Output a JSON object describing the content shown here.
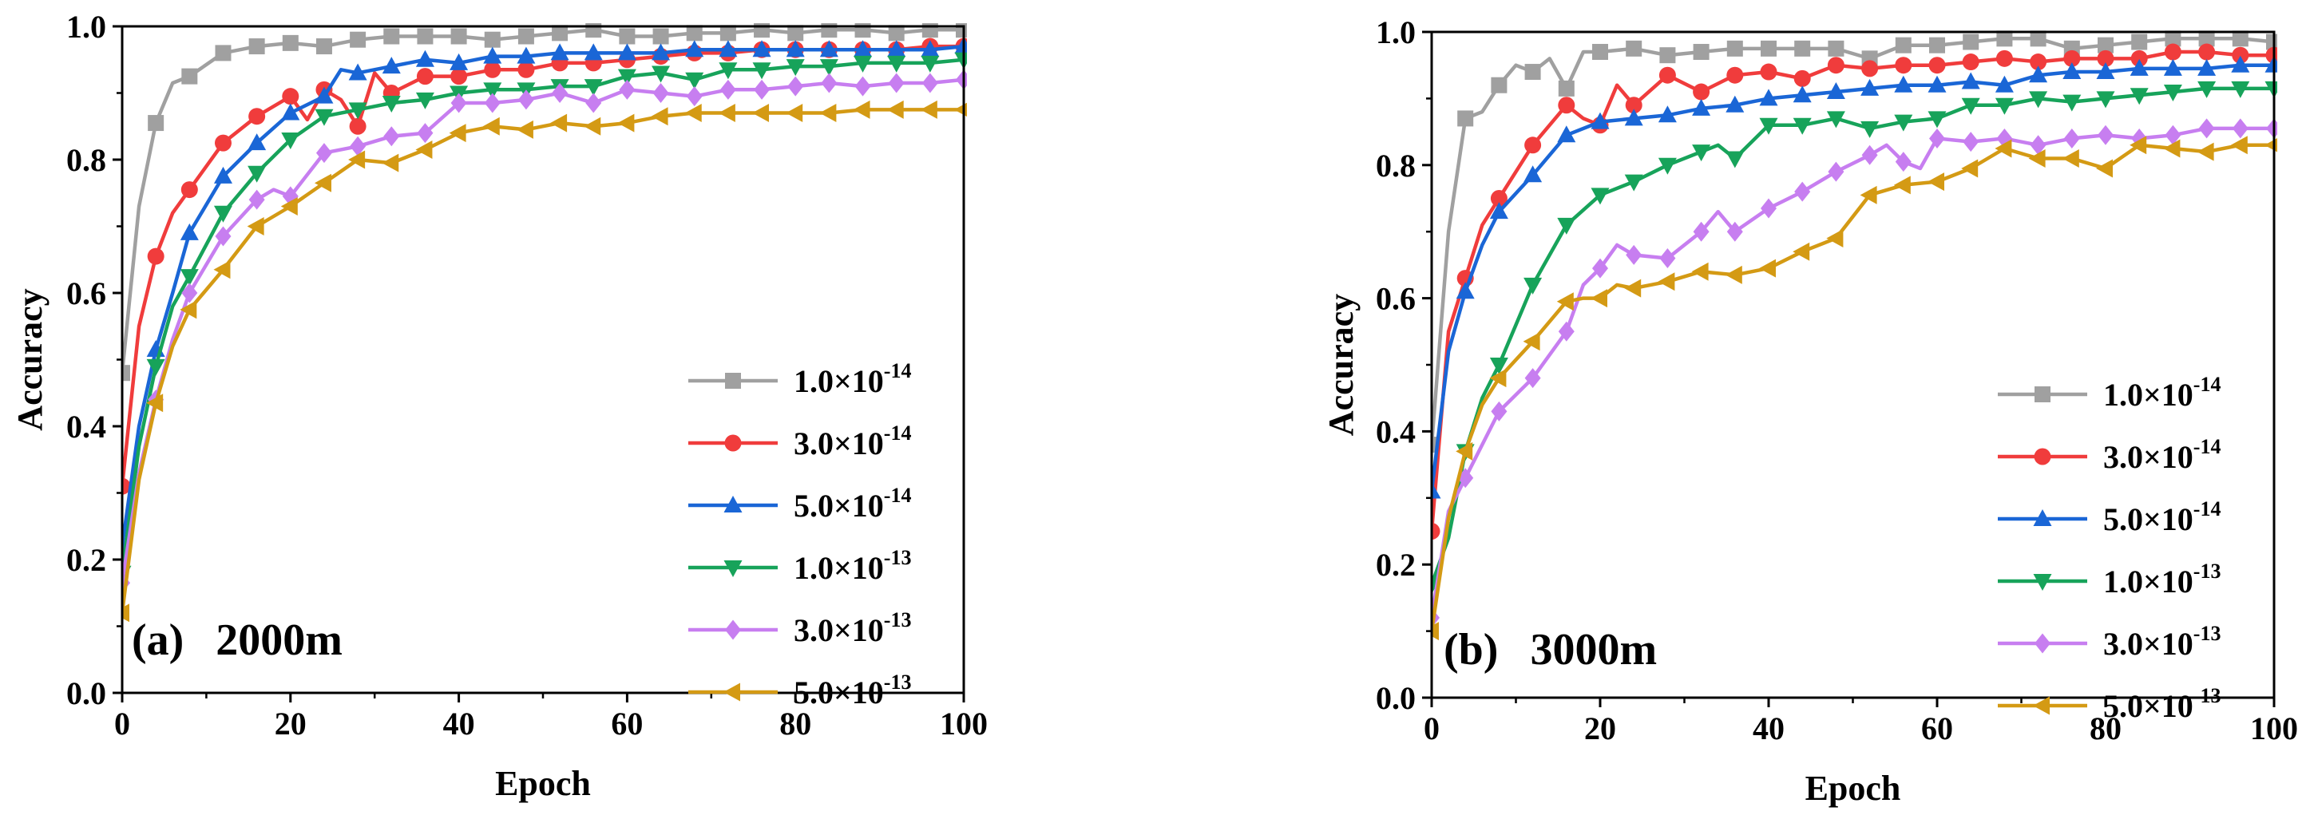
{
  "chart_data": [
    {
      "type": "line",
      "panel": "(a)",
      "title": "2000m",
      "xlabel": "Epoch",
      "ylabel": "Accuracy",
      "xlim": [
        0,
        100
      ],
      "ylim": [
        0,
        1.0
      ],
      "xticks": [
        "0",
        "20",
        "40",
        "60",
        "80",
        "100"
      ],
      "yticks": [
        "0.0",
        "0.2",
        "0.4",
        "0.6",
        "0.8",
        "1.0"
      ],
      "legend_position": "center-right",
      "series": [
        {
          "name_mantissa": "1.0×10",
          "name_exp": "-14",
          "color": "#a0a0a0",
          "marker": "square",
          "x": [
            0,
            2,
            4,
            6,
            8,
            12,
            16,
            20,
            24,
            28,
            32,
            36,
            40,
            44,
            48,
            52,
            56,
            60,
            64,
            68,
            72,
            76,
            80,
            84,
            88,
            92,
            96,
            100
          ],
          "y": [
            0.48,
            0.73,
            0.855,
            0.915,
            0.925,
            0.96,
            0.97,
            0.975,
            0.97,
            0.98,
            0.985,
            0.985,
            0.985,
            0.98,
            0.985,
            0.99,
            0.995,
            0.985,
            0.985,
            0.99,
            0.99,
            0.995,
            0.99,
            0.995,
            0.995,
            0.99,
            0.995,
            0.995
          ]
        },
        {
          "name_mantissa": "3.0×10",
          "name_exp": "-14",
          "color": "#f03c3c",
          "marker": "circle",
          "x": [
            0,
            2,
            4,
            6,
            8,
            12,
            16,
            20,
            22,
            24,
            26,
            28,
            30,
            32,
            36,
            40,
            44,
            48,
            52,
            56,
            60,
            64,
            68,
            72,
            76,
            80,
            84,
            88,
            92,
            96,
            100
          ],
          "y": [
            0.31,
            0.55,
            0.655,
            0.72,
            0.755,
            0.825,
            0.865,
            0.895,
            0.86,
            0.905,
            0.89,
            0.85,
            0.93,
            0.9,
            0.925,
            0.925,
            0.935,
            0.935,
            0.945,
            0.945,
            0.95,
            0.955,
            0.96,
            0.96,
            0.965,
            0.965,
            0.965,
            0.965,
            0.965,
            0.97,
            0.97
          ]
        },
        {
          "name_mantissa": "5.0×10",
          "name_exp": "-14",
          "color": "#1a66d6",
          "marker": "triangle-up",
          "x": [
            0,
            2,
            4,
            6,
            8,
            12,
            16,
            20,
            24,
            26,
            28,
            32,
            36,
            40,
            44,
            48,
            52,
            56,
            60,
            64,
            68,
            72,
            76,
            80,
            84,
            88,
            92,
            96,
            100
          ],
          "y": [
            0.22,
            0.4,
            0.515,
            0.6,
            0.69,
            0.775,
            0.825,
            0.87,
            0.895,
            0.935,
            0.93,
            0.94,
            0.95,
            0.945,
            0.955,
            0.955,
            0.96,
            0.96,
            0.96,
            0.96,
            0.965,
            0.965,
            0.965,
            0.965,
            0.965,
            0.965,
            0.965,
            0.965,
            0.97
          ]
        },
        {
          "name_mantissa": "1.0×10",
          "name_exp": "-13",
          "color": "#17a35a",
          "marker": "triangle-down",
          "x": [
            0,
            2,
            4,
            6,
            8,
            12,
            16,
            20,
            24,
            28,
            32,
            36,
            40,
            44,
            48,
            52,
            56,
            60,
            64,
            68,
            72,
            76,
            80,
            84,
            88,
            92,
            96,
            100
          ],
          "y": [
            0.18,
            0.37,
            0.49,
            0.58,
            0.625,
            0.72,
            0.78,
            0.83,
            0.865,
            0.875,
            0.885,
            0.89,
            0.9,
            0.905,
            0.905,
            0.91,
            0.91,
            0.925,
            0.93,
            0.92,
            0.935,
            0.935,
            0.94,
            0.94,
            0.945,
            0.945,
            0.945,
            0.95
          ]
        },
        {
          "name_mantissa": "3.0×10",
          "name_exp": "-13",
          "color": "#c77ef0",
          "marker": "diamond",
          "x": [
            0,
            2,
            4,
            6,
            8,
            12,
            16,
            18,
            20,
            24,
            28,
            32,
            36,
            40,
            44,
            48,
            52,
            56,
            60,
            64,
            68,
            72,
            76,
            80,
            84,
            88,
            92,
            96,
            100
          ],
          "y": [
            0.165,
            0.33,
            0.44,
            0.53,
            0.6,
            0.685,
            0.74,
            0.755,
            0.745,
            0.81,
            0.82,
            0.835,
            0.84,
            0.885,
            0.885,
            0.89,
            0.9,
            0.885,
            0.905,
            0.9,
            0.895,
            0.905,
            0.905,
            0.91,
            0.915,
            0.91,
            0.915,
            0.915,
            0.92
          ]
        },
        {
          "name_mantissa": "5.0×10",
          "name_exp": "-13",
          "color": "#d49a14",
          "marker": "triangle-left",
          "x": [
            0,
            2,
            4,
            6,
            8,
            12,
            16,
            20,
            24,
            28,
            32,
            36,
            40,
            44,
            48,
            52,
            56,
            60,
            64,
            68,
            72,
            76,
            80,
            84,
            88,
            92,
            96,
            100
          ],
          "y": [
            0.12,
            0.32,
            0.435,
            0.52,
            0.575,
            0.635,
            0.7,
            0.73,
            0.765,
            0.8,
            0.795,
            0.815,
            0.84,
            0.85,
            0.845,
            0.855,
            0.85,
            0.855,
            0.865,
            0.87,
            0.87,
            0.87,
            0.87,
            0.87,
            0.875,
            0.875,
            0.875,
            0.875
          ]
        }
      ]
    },
    {
      "type": "line",
      "panel": "(b)",
      "title": "3000m",
      "xlabel": "Epoch",
      "ylabel": "Accuracy",
      "xlim": [
        0,
        100
      ],
      "ylim": [
        0,
        1.0
      ],
      "xticks": [
        "0",
        "20",
        "40",
        "60",
        "80",
        "100"
      ],
      "yticks": [
        "0.0",
        "0.2",
        "0.4",
        "0.6",
        "0.8",
        "1.0"
      ],
      "legend_position": "center-right",
      "series": [
        {
          "name_mantissa": "1.0×10",
          "name_exp": "-14",
          "color": "#a0a0a0",
          "marker": "square",
          "x": [
            0,
            2,
            4,
            6,
            8,
            10,
            12,
            14,
            16,
            18,
            20,
            24,
            28,
            32,
            36,
            40,
            44,
            48,
            52,
            56,
            60,
            64,
            68,
            72,
            76,
            80,
            84,
            88,
            92,
            96,
            100
          ],
          "y": [
            0.38,
            0.7,
            0.87,
            0.88,
            0.92,
            0.95,
            0.94,
            0.96,
            0.915,
            0.97,
            0.97,
            0.975,
            0.965,
            0.97,
            0.975,
            0.975,
            0.975,
            0.975,
            0.96,
            0.98,
            0.98,
            0.985,
            0.99,
            0.99,
            0.975,
            0.98,
            0.985,
            0.99,
            0.99,
            0.99,
            0.985
          ]
        },
        {
          "name_mantissa": "3.0×10",
          "name_exp": "-14",
          "color": "#f03c3c",
          "marker": "circle",
          "x": [
            0,
            2,
            4,
            6,
            8,
            12,
            16,
            18,
            20,
            22,
            24,
            28,
            32,
            36,
            40,
            44,
            48,
            52,
            56,
            60,
            64,
            68,
            72,
            76,
            80,
            84,
            88,
            92,
            96,
            100
          ],
          "y": [
            0.25,
            0.55,
            0.63,
            0.71,
            0.75,
            0.83,
            0.89,
            0.87,
            0.86,
            0.92,
            0.89,
            0.935,
            0.91,
            0.935,
            0.94,
            0.93,
            0.95,
            0.945,
            0.95,
            0.95,
            0.955,
            0.96,
            0.955,
            0.96,
            0.96,
            0.96,
            0.97,
            0.97,
            0.965,
            0.965
          ]
        },
        {
          "name_mantissa": "5.0×10",
          "name_exp": "-14",
          "color": "#1a66d6",
          "marker": "triangle-up",
          "x": [
            0,
            2,
            4,
            6,
            8,
            12,
            16,
            20,
            24,
            28,
            32,
            36,
            40,
            44,
            48,
            52,
            56,
            60,
            64,
            68,
            72,
            76,
            80,
            84,
            88,
            92,
            96,
            100
          ],
          "y": [
            0.31,
            0.52,
            0.61,
            0.68,
            0.73,
            0.785,
            0.845,
            0.865,
            0.87,
            0.875,
            0.885,
            0.89,
            0.9,
            0.905,
            0.91,
            0.915,
            0.92,
            0.92,
            0.925,
            0.92,
            0.935,
            0.94,
            0.94,
            0.945,
            0.945,
            0.945,
            0.95,
            0.95
          ]
        },
        {
          "name_mantissa": "1.0×10",
          "name_exp": "-13",
          "color": "#17a35a",
          "marker": "triangle-down",
          "x": [
            0,
            2,
            4,
            6,
            8,
            12,
            16,
            20,
            24,
            28,
            32,
            34,
            36,
            40,
            42,
            44,
            48,
            52,
            56,
            60,
            64,
            68,
            72,
            76,
            80,
            84,
            88,
            92,
            96,
            100
          ],
          "y": [
            0.17,
            0.24,
            0.37,
            0.45,
            0.5,
            0.62,
            0.71,
            0.755,
            0.775,
            0.8,
            0.82,
            0.83,
            0.81,
            0.86,
            0.86,
            0.86,
            0.87,
            0.855,
            0.865,
            0.87,
            0.89,
            0.89,
            0.9,
            0.895,
            0.9,
            0.905,
            0.91,
            0.915,
            0.915,
            0.915
          ]
        },
        {
          "name_mantissa": "3.0×10",
          "name_exp": "-13",
          "color": "#c77ef0",
          "marker": "diamond",
          "x": [
            0,
            2,
            4,
            6,
            8,
            12,
            16,
            18,
            20,
            22,
            24,
            28,
            32,
            34,
            36,
            40,
            44,
            48,
            52,
            54,
            56,
            58,
            60,
            64,
            68,
            72,
            76,
            80,
            84,
            88,
            92,
            96,
            100
          ],
          "y": [
            0.12,
            0.28,
            0.33,
            0.38,
            0.43,
            0.48,
            0.55,
            0.62,
            0.645,
            0.68,
            0.665,
            0.66,
            0.7,
            0.73,
            0.7,
            0.735,
            0.76,
            0.79,
            0.815,
            0.83,
            0.805,
            0.795,
            0.84,
            0.835,
            0.84,
            0.83,
            0.84,
            0.845,
            0.84,
            0.845,
            0.855,
            0.855,
            0.855
          ]
        },
        {
          "name_mantissa": "5.0×10",
          "name_exp": "-13",
          "color": "#d49a14",
          "marker": "triangle-left",
          "x": [
            0,
            2,
            4,
            6,
            8,
            12,
            16,
            18,
            20,
            22,
            24,
            28,
            32,
            36,
            40,
            44,
            48,
            52,
            56,
            60,
            64,
            68,
            72,
            76,
            80,
            84,
            88,
            92,
            96,
            100
          ],
          "y": [
            0.1,
            0.27,
            0.37,
            0.44,
            0.48,
            0.535,
            0.595,
            0.6,
            0.6,
            0.62,
            0.615,
            0.625,
            0.64,
            0.635,
            0.645,
            0.67,
            0.69,
            0.755,
            0.77,
            0.775,
            0.795,
            0.825,
            0.81,
            0.81,
            0.795,
            0.83,
            0.825,
            0.82,
            0.83,
            0.83
          ]
        }
      ]
    }
  ]
}
